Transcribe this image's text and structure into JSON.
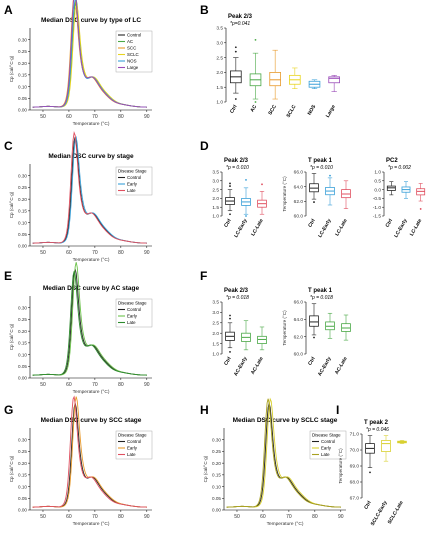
{
  "chart_data": [
    {
      "type": "line",
      "panel": "A",
      "title": "Median DSC curve by type of LC",
      "xlabel": "Temperature (°C)",
      "ylabel": "Cp (cal/°C·g)",
      "xlim": [
        45,
        92
      ],
      "ylim": [
        0,
        0.35
      ],
      "xticks": [
        "50",
        "60",
        "70",
        "80",
        "90"
      ],
      "yticks": [
        "0.00",
        "0.05",
        "0.10",
        "0.15",
        "0.20",
        "0.25",
        "0.30"
      ],
      "legend_title": "",
      "legend": "top-right",
      "series": [
        {
          "name": "Control",
          "color": "#222222",
          "peak2": 0.3,
          "peak1": 0.2,
          "shift": 0
        },
        {
          "name": "AC",
          "color": "#4aa846",
          "peak2": 0.31,
          "peak1": 0.21,
          "shift": 0.3
        },
        {
          "name": "SCC",
          "color": "#e89a2c",
          "peak2": 0.32,
          "peak1": 0.22,
          "shift": -0.3
        },
        {
          "name": "SCLC",
          "color": "#e8d420",
          "peak2": 0.3,
          "peak1": 0.2,
          "shift": 0.5
        },
        {
          "name": "NOS",
          "color": "#3aa0d8",
          "peak2": 0.33,
          "peak1": 0.19,
          "shift": 0.1
        },
        {
          "name": "Large",
          "color": "#9a4bb8",
          "peak2": 0.34,
          "peak1": 0.21,
          "shift": -0.1
        }
      ]
    },
    {
      "type": "box",
      "panel": "B",
      "title": "Peak 2/3",
      "pvalue": "*p=0.041",
      "ylim": [
        1.0,
        3.5
      ],
      "yticks": [
        "1.0",
        "1.5",
        "2.0",
        "2.5",
        "3.0",
        "3.5"
      ],
      "categories": [
        "Ctrl",
        "AC",
        "SCC",
        "SCLC",
        "NOS",
        "Large"
      ],
      "boxes": [
        {
          "name": "Ctrl",
          "color": "#222222",
          "min": 1.3,
          "q1": 1.65,
          "median": 1.85,
          "q3": 2.05,
          "max": 2.5,
          "outliers": [
            2.7,
            2.85,
            1.1
          ]
        },
        {
          "name": "AC",
          "color": "#4aa846",
          "min": 1.1,
          "q1": 1.55,
          "median": 1.75,
          "q3": 1.95,
          "max": 2.65,
          "outliers": [
            3.1,
            1.0
          ]
        },
        {
          "name": "SCC",
          "color": "#e89a2c",
          "min": 1.1,
          "q1": 1.55,
          "median": 1.75,
          "q3": 2.0,
          "max": 2.75,
          "outliers": []
        },
        {
          "name": "SCLC",
          "color": "#e8d420",
          "min": 1.45,
          "q1": 1.6,
          "median": 1.75,
          "q3": 1.9,
          "max": 2.15,
          "outliers": []
        },
        {
          "name": "NOS",
          "color": "#3aa0d8",
          "min": 1.45,
          "q1": 1.5,
          "median": 1.6,
          "q3": 1.7,
          "max": 1.75,
          "outliers": []
        },
        {
          "name": "Large",
          "color": "#9a4bb8",
          "min": 1.35,
          "q1": 1.65,
          "median": 1.8,
          "q3": 1.85,
          "max": 1.9,
          "outliers": []
        }
      ]
    },
    {
      "type": "line",
      "panel": "C",
      "title": "Median DSC curve by stage",
      "xlabel": "Temperature (°C)",
      "ylabel": "Cp (cal/°C·g)",
      "xlim": [
        45,
        92
      ],
      "ylim": [
        0,
        0.35
      ],
      "xticks": [
        "50",
        "60",
        "70",
        "80",
        "90"
      ],
      "yticks": [
        "0.00",
        "0.05",
        "0.10",
        "0.15",
        "0.20",
        "0.25",
        "0.30"
      ],
      "legend_title": "Disease Stage",
      "legend": "top-right",
      "series": [
        {
          "name": "Control",
          "color": "#222222",
          "peak2": 0.31,
          "peak1": 0.2,
          "shift": 0
        },
        {
          "name": "Early",
          "color": "#3aa0d8",
          "peak2": 0.3,
          "peak1": 0.21,
          "shift": 0.3
        },
        {
          "name": "Late",
          "color": "#e05060",
          "peak2": 0.32,
          "peak1": 0.21,
          "shift": -0.3
        }
      ]
    },
    {
      "type": "box",
      "panel": "D1",
      "title": "Peak 2/3",
      "pvalue": "*p = 0.010",
      "ylabel": "",
      "ylim": [
        1.0,
        3.5
      ],
      "yticks": [
        "1.0",
        "1.5",
        "2.0",
        "2.5",
        "3.0",
        "3.5"
      ],
      "categories": [
        "Ctrl",
        "LC-Early",
        "LC-Late"
      ],
      "boxes": [
        {
          "name": "Ctrl",
          "color": "#222222",
          "min": 1.3,
          "q1": 1.65,
          "median": 1.85,
          "q3": 2.05,
          "max": 2.5,
          "outliers": [
            2.7,
            2.85,
            1.1
          ]
        },
        {
          "name": "LC-Early",
          "color": "#3aa0d8",
          "min": 1.1,
          "q1": 1.6,
          "median": 1.8,
          "q3": 2.0,
          "max": 2.6,
          "outliers": [
            3.05,
            1.0
          ]
        },
        {
          "name": "LC-Late",
          "color": "#e05060",
          "min": 1.1,
          "q1": 1.5,
          "median": 1.7,
          "q3": 1.9,
          "max": 2.4,
          "outliers": [
            2.8
          ]
        }
      ]
    },
    {
      "type": "box",
      "panel": "D2",
      "title": "T peak 1",
      "pvalue": "*p = 0.010",
      "ylabel": "Temperature (°C)",
      "ylim": [
        60.0,
        66.0
      ],
      "yticks": [
        "60.0",
        "62.0",
        "64.0",
        "66.0"
      ],
      "categories": [
        "Ctrl",
        "LC-Early",
        "LC-Late"
      ],
      "boxes": [
        {
          "name": "Ctrl",
          "color": "#222222",
          "min": 62.3,
          "q1": 63.3,
          "median": 63.8,
          "q3": 64.4,
          "max": 65.8,
          "outliers": [
            61.9
          ]
        },
        {
          "name": "LC-Early",
          "color": "#3aa0d8",
          "min": 61.5,
          "q1": 62.9,
          "median": 63.4,
          "q3": 63.9,
          "max": 65.2,
          "outliers": [
            65.5
          ]
        },
        {
          "name": "LC-Late",
          "color": "#e05060",
          "min": 61.0,
          "q1": 62.5,
          "median": 63.0,
          "q3": 63.6,
          "max": 64.8,
          "outliers": []
        }
      ]
    },
    {
      "type": "box",
      "panel": "D3",
      "title": "PC2",
      "pvalue": "*p = 0.002",
      "ylim": [
        -1.5,
        1.0
      ],
      "yticks": [
        "-1.5",
        "-1.0",
        "-0.5",
        "0.0",
        "0.5",
        "1.0"
      ],
      "categories": [
        "Ctrl",
        "LC-Early",
        "LC-Late"
      ],
      "boxes": [
        {
          "name": "Ctrl",
          "color": "#222222",
          "min": -0.3,
          "q1": -0.05,
          "median": 0.1,
          "q3": 0.2,
          "max": 0.45,
          "outliers": []
        },
        {
          "name": "LC-Early",
          "color": "#3aa0d8",
          "min": -0.5,
          "q1": -0.15,
          "median": 0.0,
          "q3": 0.15,
          "max": 0.45,
          "outliers": []
        },
        {
          "name": "LC-Late",
          "color": "#e05060",
          "min": -0.65,
          "q1": -0.3,
          "median": -0.1,
          "q3": 0.05,
          "max": 0.35,
          "outliers": [
            -1.1
          ]
        }
      ]
    },
    {
      "type": "line",
      "panel": "E",
      "title": "Median DSC curve by AC stage",
      "xlabel": "Temperature (°C)",
      "ylabel": "Cp (cal/°C·g)",
      "xlim": [
        45,
        92
      ],
      "ylim": [
        0,
        0.35
      ],
      "xticks": [
        "50",
        "60",
        "70",
        "80",
        "90"
      ],
      "yticks": [
        "0.00",
        "0.05",
        "0.10",
        "0.15",
        "0.20",
        "0.25",
        "0.30"
      ],
      "legend_title": "Disease Stage",
      "legend": "top-right",
      "series": [
        {
          "name": "Control",
          "color": "#222222",
          "peak2": 0.31,
          "peak1": 0.2,
          "shift": 0
        },
        {
          "name": "Early",
          "color": "#6cc24a",
          "peak2": 0.33,
          "peak1": 0.21,
          "shift": 0.4
        },
        {
          "name": "Late",
          "color": "#2e8b2e",
          "peak2": 0.3,
          "peak1": 0.2,
          "shift": -0.4
        }
      ]
    },
    {
      "type": "box",
      "panel": "F1",
      "title": "Peak 2/3",
      "pvalue": "*p = 0.018",
      "ylim": [
        1.0,
        3.5
      ],
      "yticks": [
        "1.0",
        "1.5",
        "2.0",
        "2.5",
        "3.0",
        "3.5"
      ],
      "categories": [
        "Ctrl",
        "AC-Early",
        "AC-Late"
      ],
      "boxes": [
        {
          "name": "Ctrl",
          "color": "#222222",
          "min": 1.3,
          "q1": 1.65,
          "median": 1.85,
          "q3": 2.05,
          "max": 2.5,
          "outliers": [
            2.7,
            2.85,
            1.1
          ]
        },
        {
          "name": "AC-Early",
          "color": "#4aa846",
          "min": 1.2,
          "q1": 1.6,
          "median": 1.8,
          "q3": 2.0,
          "max": 2.6,
          "outliers": []
        },
        {
          "name": "AC-Late",
          "color": "#4aa846",
          "min": 1.2,
          "q1": 1.5,
          "median": 1.7,
          "q3": 1.85,
          "max": 2.3,
          "outliers": []
        }
      ]
    },
    {
      "type": "box",
      "panel": "F2",
      "title": "T peak 1",
      "pvalue": "*p = 0.018",
      "ylabel": "Temperature (°C)",
      "ylim": [
        60.0,
        66.0
      ],
      "yticks": [
        "60.0",
        "62.0",
        "64.0",
        "66.0"
      ],
      "categories": [
        "Ctrl",
        "AC-Early",
        "AC-Late"
      ],
      "boxes": [
        {
          "name": "Ctrl",
          "color": "#222222",
          "min": 62.2,
          "q1": 63.2,
          "median": 63.7,
          "q3": 64.4,
          "max": 65.8,
          "outliers": [
            61.9
          ]
        },
        {
          "name": "AC-Early",
          "color": "#4aa846",
          "min": 61.8,
          "q1": 62.8,
          "median": 63.2,
          "q3": 63.7,
          "max": 64.7,
          "outliers": []
        },
        {
          "name": "AC-Late",
          "color": "#4aa846",
          "min": 61.6,
          "q1": 62.6,
          "median": 63.0,
          "q3": 63.5,
          "max": 64.5,
          "outliers": []
        }
      ]
    },
    {
      "type": "line",
      "panel": "G",
      "title": "Median DSC curve by SCC stage",
      "xlabel": "Temperature (°C)",
      "ylabel": "Cp (cal/°C·g)",
      "xlim": [
        45,
        92
      ],
      "ylim": [
        0,
        0.35
      ],
      "xticks": [
        "50",
        "60",
        "70",
        "80",
        "90"
      ],
      "yticks": [
        "0.00",
        "0.05",
        "0.10",
        "0.15",
        "0.20",
        "0.25",
        "0.30"
      ],
      "legend_title": "Disease Stage",
      "legend": "top-right",
      "series": [
        {
          "name": "Control",
          "color": "#222222",
          "peak2": 0.3,
          "peak1": 0.2,
          "shift": 0
        },
        {
          "name": "Early",
          "color": "#e89a2c",
          "peak2": 0.31,
          "peak1": 0.22,
          "shift": 0.4
        },
        {
          "name": "Late",
          "color": "#e05060",
          "peak2": 0.32,
          "peak1": 0.21,
          "shift": -0.5
        }
      ]
    },
    {
      "type": "line",
      "panel": "H",
      "title": "Median DSC curve by SCLC stage",
      "xlabel": "Temperature (°C)",
      "ylabel": "Cp (cal/°C·g)",
      "xlim": [
        45,
        92
      ],
      "ylim": [
        0,
        0.35
      ],
      "xticks": [
        "50",
        "60",
        "70",
        "80",
        "90"
      ],
      "yticks": [
        "0.00",
        "0.05",
        "0.10",
        "0.15",
        "0.20",
        "0.25",
        "0.30"
      ],
      "legend_title": "Disease Stage",
      "legend": "top-right",
      "series": [
        {
          "name": "Control",
          "color": "#222222",
          "peak2": 0.3,
          "peak1": 0.2,
          "shift": 0
        },
        {
          "name": "Early",
          "color": "#d8d030",
          "peak2": 0.31,
          "peak1": 0.21,
          "shift": 0.5
        },
        {
          "name": "Late",
          "color": "#a8a020",
          "peak2": 0.32,
          "peak1": 0.2,
          "shift": -0.4
        }
      ]
    },
    {
      "type": "box",
      "panel": "I",
      "title": "T peak 2",
      "pvalue": "*p = 0.046",
      "ylabel": "Temperature (°C)",
      "ylim": [
        67.0,
        71.0
      ],
      "yticks": [
        "67.0",
        "68.0",
        "69.0",
        "70.0",
        "71.0"
      ],
      "categories": [
        "Ctrl",
        "SCLC-Early",
        "SCLC-Late"
      ],
      "boxes": [
        {
          "name": "Ctrl",
          "color": "#222222",
          "min": 68.9,
          "q1": 69.8,
          "median": 70.1,
          "q3": 70.4,
          "max": 70.9,
          "outliers": [
            68.6
          ]
        },
        {
          "name": "SCLC-Early",
          "color": "#d8d030",
          "min": 69.3,
          "q1": 69.9,
          "median": 70.4,
          "q3": 70.6,
          "max": 70.9,
          "outliers": []
        },
        {
          "name": "SCLC-Late",
          "color": "#d8d030",
          "min": 70.4,
          "q1": 70.45,
          "median": 70.5,
          "q3": 70.55,
          "max": 70.6,
          "outliers": []
        }
      ]
    }
  ],
  "panel_letters": {
    "A": "A",
    "B": "B",
    "C": "C",
    "D": "D",
    "E": "E",
    "F": "F",
    "G": "G",
    "H": "H",
    "I": "I"
  }
}
